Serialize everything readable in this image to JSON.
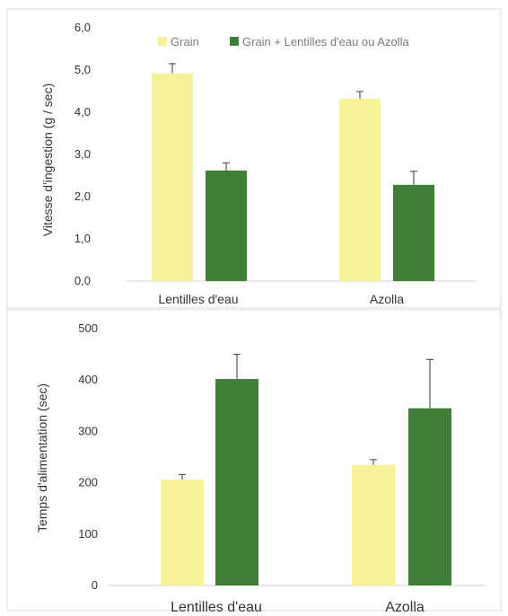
{
  "colors": {
    "grain": "#f5f29a",
    "mix": "#3f7f3a"
  },
  "chart_data": [
    {
      "type": "bar",
      "categories": [
        "Lentilles d'eau",
        "Azolla"
      ],
      "ylabel": "Vitesse d'ingestion (g / sec)",
      "ylim": [
        0,
        6
      ],
      "yticks": [
        "0,0",
        "1,0",
        "2,0",
        "3,0",
        "4,0",
        "5,0",
        "6,0"
      ],
      "legend": {
        "placement": "top",
        "entries": [
          "Grain",
          "Grain + Lentilles d'eau ou Azolla"
        ]
      },
      "series": [
        {
          "name": "Grain",
          "values": [
            4.92,
            4.32
          ],
          "errors": [
            0.23,
            0.17
          ]
        },
        {
          "name": "Grain + Lentilles d'eau ou Azolla",
          "values": [
            2.62,
            2.28
          ],
          "errors": [
            0.18,
            0.32
          ]
        }
      ]
    },
    {
      "type": "bar",
      "categories": [
        "Lentilles d'eau",
        "Azolla"
      ],
      "ylabel": "Temps d'alimentation (sec)",
      "ylim": [
        0,
        500
      ],
      "yticks": [
        "0",
        "100",
        "200",
        "300",
        "400",
        "500"
      ],
      "series": [
        {
          "name": "Grain",
          "values": [
            206,
            235
          ],
          "errors": [
            10,
            10
          ]
        },
        {
          "name": "Grain + Lentilles d'eau ou Azolla",
          "values": [
            402,
            345
          ],
          "errors": [
            48,
            95
          ]
        }
      ]
    }
  ]
}
